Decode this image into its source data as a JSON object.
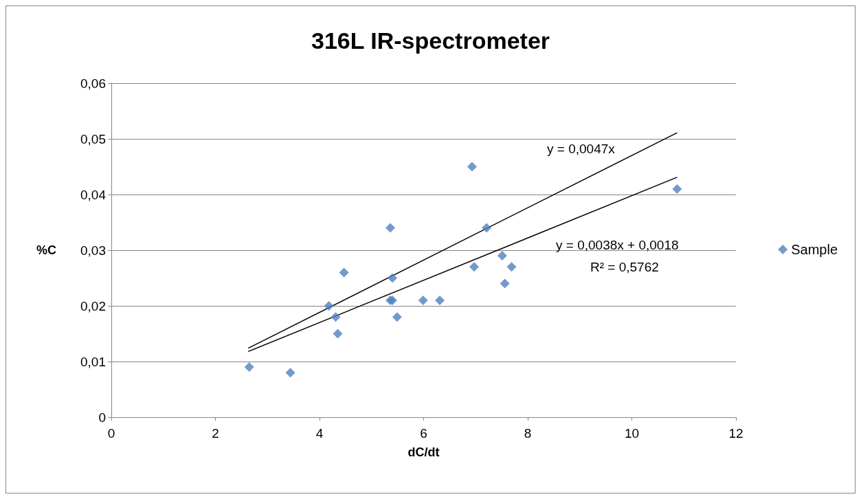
{
  "chart_data": {
    "type": "scatter",
    "title": "316L IR-spectrometer",
    "xlabel": "dC/dt",
    "ylabel": "%C",
    "series": [
      {
        "name": "Sample",
        "color": "#4f81bd",
        "x": [
          2.65,
          3.44,
          4.18,
          4.31,
          4.35,
          4.47,
          5.36,
          5.36,
          5.4,
          5.4,
          5.49,
          5.99,
          6.31,
          6.93,
          6.97,
          7.21,
          7.51,
          7.56,
          7.69,
          10.87
        ],
        "values": [
          0.009,
          0.008,
          0.02,
          0.018,
          0.015,
          0.026,
          0.034,
          0.021,
          0.025,
          0.021,
          0.018,
          0.021,
          0.021,
          0.045,
          0.027,
          0.034,
          0.029,
          0.024,
          0.027,
          0.041
        ]
      },
      {
        "type": "line",
        "color": "#000000",
        "marker": "none",
        "x": [
          2.63,
          10.87
        ],
        "values": [
          0.0124,
          0.0511
        ]
      },
      {
        "type": "line",
        "color": "#000000",
        "marker": "none",
        "x": [
          2.63,
          10.87
        ],
        "values": [
          0.0118,
          0.0431
        ]
      }
    ],
    "xlim": [
      0,
      12
    ],
    "xticks": [
      0,
      2,
      4,
      6,
      8,
      10,
      12
    ],
    "ylim": [
      0,
      0.06
    ],
    "yticks": [
      {
        "value": 0,
        "label": "0"
      },
      {
        "value": 0.01,
        "label": "0,01"
      },
      {
        "value": 0.02,
        "label": "0,02"
      },
      {
        "value": 0.03,
        "label": "0,03"
      },
      {
        "value": 0.04,
        "label": "0,04"
      },
      {
        "value": 0.05,
        "label": "0,05"
      },
      {
        "value": 0.06,
        "label": "0,06"
      }
    ],
    "grid": "y",
    "legend": "right",
    "marker": "diamond",
    "annotations": [
      "y = 0,0047x",
      "y = 0,0038x + 0,0018",
      "R² = 0,5762"
    ]
  }
}
